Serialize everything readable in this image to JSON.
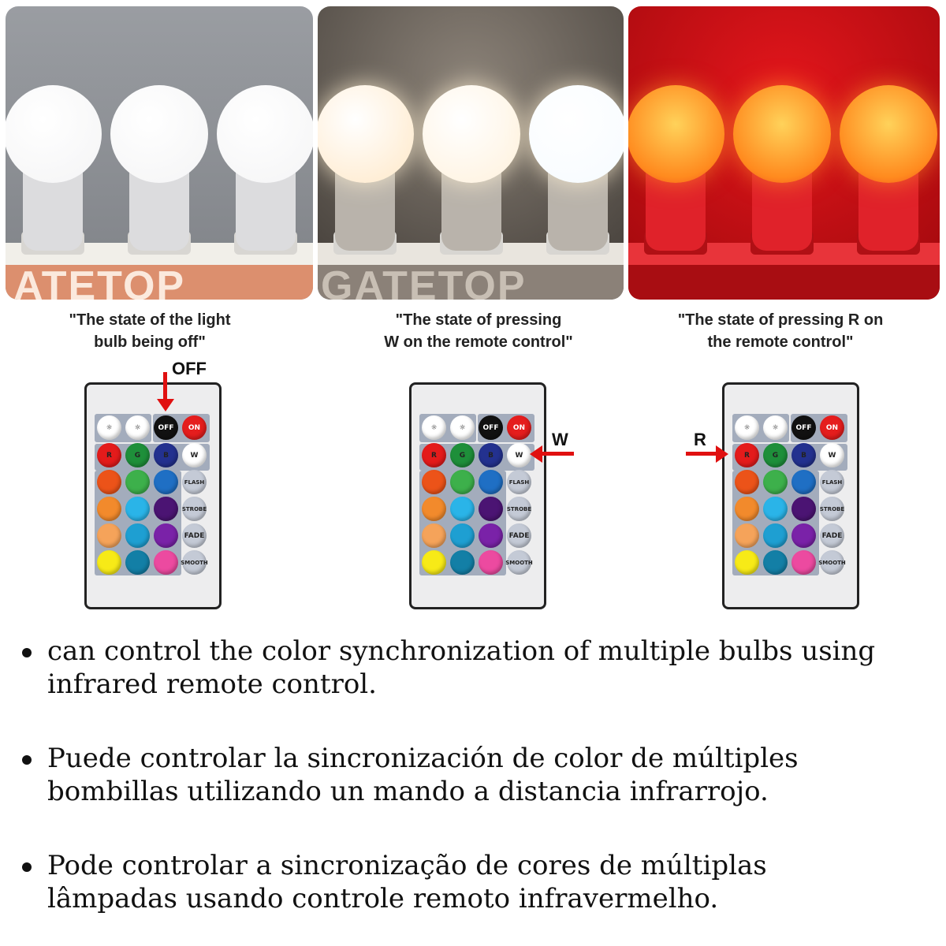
{
  "panels": [
    {
      "brand": "ATETOP",
      "state": "off",
      "bg": "#8e9196",
      "bulb": "#f4f4f5",
      "neck": "#dcdcde"
    },
    {
      "brand": "GATETOP",
      "state": "white",
      "bg": "#4f4a45",
      "bulb": "#fff7ea",
      "neck": "#b9b3ab"
    },
    {
      "brand": "",
      "state": "red",
      "bg": "#b80b10",
      "bulb": "#ffb23a",
      "neck": "#e0222a"
    }
  ],
  "captions": [
    {
      "line1": "\"The state of the light",
      "line2": "bulb being off\""
    },
    {
      "line1": "\"The state of pressing",
      "line2": "W on the remote control\""
    },
    {
      "line1": "\"The state of pressing R on",
      "line2": "the remote control\""
    }
  ],
  "remote": {
    "top_row": [
      {
        "label": "☼",
        "color": "#ffffff"
      },
      {
        "label": "☼",
        "color": "#ffffff"
      },
      {
        "label": "OFF",
        "color": "#111111"
      },
      {
        "label": "ON",
        "color": "#e51d1d"
      }
    ],
    "grid": [
      [
        {
          "label": "R",
          "color": "#e41b1b"
        },
        {
          "label": "G",
          "color": "#1e8f3a"
        },
        {
          "label": "B",
          "color": "#23318f"
        },
        {
          "label": "W",
          "color": "#ffffff"
        }
      ],
      [
        {
          "label": "",
          "color": "#ec5319"
        },
        {
          "label": "",
          "color": "#3db04b"
        },
        {
          "label": "",
          "color": "#1f6fc4"
        },
        {
          "label": "FLASH",
          "color": "#c4cad6"
        }
      ],
      [
        {
          "label": "",
          "color": "#f28a2c"
        },
        {
          "label": "",
          "color": "#2ab4e8"
        },
        {
          "label": "",
          "color": "#4b1473"
        },
        {
          "label": "STROBE",
          "color": "#c4cad6"
        }
      ],
      [
        {
          "label": "",
          "color": "#f5a35a"
        },
        {
          "label": "",
          "color": "#1e9fd2"
        },
        {
          "label": "",
          "color": "#7a22a8"
        },
        {
          "label": "FADE",
          "color": "#c4cad6"
        }
      ],
      [
        {
          "label": "",
          "color": "#f7ea17"
        },
        {
          "label": "",
          "color": "#137fa6"
        },
        {
          "label": "",
          "color": "#ec4aa0"
        },
        {
          "label": "SMOOTH",
          "color": "#c4cad6"
        }
      ]
    ]
  },
  "arrows": {
    "off_label": "OFF",
    "w_label": "W",
    "r_label": "R",
    "color": "#e01010"
  },
  "bullets": [
    {
      "line1": "can control the color synchronization of multiple bulbs using",
      "line2": "infrared remote control."
    },
    {
      "line1": "Puede controlar la sincronización de color de múltiples",
      "line2": "bombillas utilizando un mando a distancia infrarrojo."
    },
    {
      "line1": "Pode controlar a sincronização de cores de múltiplas",
      "line2": "lâmpadas usando controle remoto infravermelho."
    }
  ]
}
